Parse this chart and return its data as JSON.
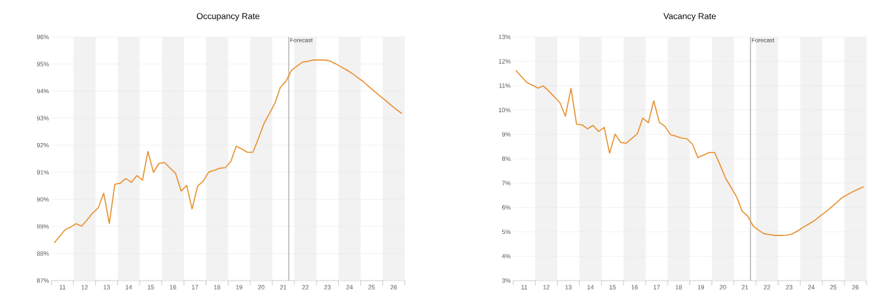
{
  "chart_data": [
    {
      "type": "line",
      "title": "Occupancy Rate",
      "color": "#e8902e",
      "grid": "y",
      "x": [
        "2011-02-15",
        "2011-05-15",
        "2011-08-15",
        "2011-11-15",
        "2012-02-15",
        "2012-05-15",
        "2012-08-15",
        "2012-11-15",
        "2013-02-15",
        "2013-05-15",
        "2013-08-15",
        "2013-11-15",
        "2014-02-15",
        "2014-05-15",
        "2014-08-15",
        "2014-11-15",
        "2015-02-15",
        "2015-05-15",
        "2015-08-15",
        "2015-11-15",
        "2016-02-15",
        "2016-05-15",
        "2016-08-15",
        "2016-11-15",
        "2017-02-15",
        "2017-05-15",
        "2017-08-15",
        "2017-11-15",
        "2018-02-15",
        "2018-05-15",
        "2018-08-15",
        "2018-11-15",
        "2019-02-15",
        "2019-05-15",
        "2019-08-15",
        "2019-11-15",
        "2020-02-15",
        "2020-05-15",
        "2020-08-15",
        "2020-11-15",
        "2021-02-15",
        "2021-05-15",
        "2021-08-15",
        "2021-11-15",
        "2022-02-15",
        "2022-05-15",
        "2022-08-15",
        "2022-11-15",
        "2023-02-15",
        "2023-05-15",
        "2023-08-15",
        "2023-11-15",
        "2024-02-15",
        "2024-05-15",
        "2024-08-15",
        "2024-11-15",
        "2025-02-15",
        "2025-05-15",
        "2025-08-15",
        "2025-11-15",
        "2026-02-15",
        "2026-05-15",
        "2026-08-15",
        "2026-11-15"
      ],
      "values": [
        88.39,
        88.63,
        88.88,
        88.98,
        89.1,
        89.01,
        89.25,
        89.5,
        89.69,
        90.23,
        89.11,
        90.56,
        90.6,
        90.77,
        90.63,
        90.88,
        90.71,
        91.77,
        91.0,
        91.33,
        91.36,
        91.16,
        90.96,
        90.31,
        90.51,
        89.65,
        90.49,
        90.67,
        91.01,
        91.07,
        91.15,
        91.17,
        91.4,
        91.96,
        91.86,
        91.74,
        91.74,
        92.24,
        92.79,
        93.17,
        93.56,
        94.14,
        94.36,
        94.77,
        94.93,
        95.07,
        95.1,
        95.15,
        95.15,
        95.15,
        95.11,
        95.01,
        94.89,
        94.78,
        94.65,
        94.5,
        94.35,
        94.17,
        94.0,
        93.82,
        93.66,
        93.49,
        93.32,
        93.17
      ],
      "xlim": [
        "2011",
        "2027"
      ],
      "ylim": [
        87,
        96
      ],
      "xticks": [
        {
          "value": "2011",
          "label": null
        },
        {
          "value": "2012",
          "label": null
        },
        {
          "value": "2013",
          "label": null
        },
        {
          "value": "2014",
          "label": null
        },
        {
          "value": "2015",
          "label": null
        },
        {
          "value": "2016",
          "label": null
        },
        {
          "value": "2017",
          "label": null
        },
        {
          "value": "2018",
          "label": null
        },
        {
          "value": "2019",
          "label": null
        },
        {
          "value": "2020",
          "label": null
        },
        {
          "value": "2021",
          "label": null
        },
        {
          "value": "2022",
          "label": null
        },
        {
          "value": "2023",
          "label": null
        },
        {
          "value": "2024",
          "label": null
        },
        {
          "value": "2025",
          "label": null
        },
        {
          "value": "2026",
          "label": null
        },
        {
          "value": "2027",
          "label": null
        },
        {
          "value": "2011-07-02",
          "label": "11"
        },
        {
          "value": "2012-07-02",
          "label": "12"
        },
        {
          "value": "2013-07-02",
          "label": "13"
        },
        {
          "value": "2014-07-02",
          "label": "14"
        },
        {
          "value": "2015-07-02",
          "label": "15"
        },
        {
          "value": "2016-07-02",
          "label": "16"
        },
        {
          "value": "2017-07-02",
          "label": "17"
        },
        {
          "value": "2018-07-02",
          "label": "18"
        },
        {
          "value": "2019-07-02",
          "label": "19"
        },
        {
          "value": "2020-07-02",
          "label": "20"
        },
        {
          "value": "2021-07-02",
          "label": "21"
        },
        {
          "value": "2022-07-02",
          "label": "22"
        },
        {
          "value": "2023-07-02",
          "label": "23"
        },
        {
          "value": "2024-07-02",
          "label": "24"
        },
        {
          "value": "2025-07-02",
          "label": "25"
        },
        {
          "value": "2026-07-02",
          "label": "26"
        }
      ],
      "yticks": [
        {
          "value": 87,
          "label": "87%"
        },
        {
          "value": 88,
          "label": "88%"
        },
        {
          "value": 89,
          "label": "89%"
        },
        {
          "value": 90,
          "label": "90%"
        },
        {
          "value": 91,
          "label": "91%"
        },
        {
          "value": 92,
          "label": "92%"
        },
        {
          "value": 93,
          "label": "93%"
        },
        {
          "value": 94,
          "label": "94%"
        },
        {
          "value": 95,
          "label": "95%"
        },
        {
          "value": 96,
          "label": "96%"
        }
      ],
      "bands": [
        {
          "axis": "x",
          "from": "2012",
          "to": "2013",
          "color": "#f2f2f2"
        },
        {
          "axis": "x",
          "from": "2014",
          "to": "2015",
          "color": "#f2f2f2"
        },
        {
          "axis": "x",
          "from": "2016",
          "to": "2017",
          "color": "#f2f2f2"
        },
        {
          "axis": "x",
          "from": "2018",
          "to": "2019",
          "color": "#f2f2f2"
        },
        {
          "axis": "x",
          "from": "2020",
          "to": "2021",
          "color": "#f2f2f2"
        },
        {
          "axis": "x",
          "from": "2022",
          "to": "2023",
          "color": "#f2f2f2"
        },
        {
          "axis": "x",
          "from": "2024",
          "to": "2025",
          "color": "#f2f2f2"
        },
        {
          "axis": "x",
          "from": "2026",
          "to": "2027",
          "color": "#f2f2f2"
        }
      ],
      "ref_lines": [
        {
          "axis": "x",
          "value": "2021-10",
          "label": "Forecast",
          "color": "#777777"
        }
      ]
    },
    {
      "type": "line",
      "title": "Vacancy Rate",
      "color": "#e8902e",
      "grid": "y",
      "x": [
        "2011-02-15",
        "2011-05-15",
        "2011-08-15",
        "2011-11-15",
        "2012-02-15",
        "2012-05-15",
        "2012-08-15",
        "2012-11-15",
        "2013-02-15",
        "2013-05-15",
        "2013-08-15",
        "2013-11-15",
        "2014-02-15",
        "2014-05-15",
        "2014-08-15",
        "2014-11-15",
        "2015-02-15",
        "2015-05-15",
        "2015-08-15",
        "2015-11-15",
        "2016-02-15",
        "2016-05-15",
        "2016-08-15",
        "2016-11-15",
        "2017-02-15",
        "2017-05-15",
        "2017-08-15",
        "2017-11-15",
        "2018-02-15",
        "2018-05-15",
        "2018-08-15",
        "2018-11-15",
        "2019-02-15",
        "2019-05-15",
        "2019-08-15",
        "2019-11-15",
        "2020-02-15",
        "2020-05-15",
        "2020-08-15",
        "2020-11-15",
        "2021-02-15",
        "2021-05-15",
        "2021-08-15",
        "2021-11-15",
        "2022-02-15",
        "2022-05-15",
        "2022-08-15",
        "2022-11-15",
        "2023-02-15",
        "2023-05-15",
        "2023-08-15",
        "2023-11-15",
        "2024-02-15",
        "2024-05-15",
        "2024-08-15",
        "2024-11-15",
        "2025-02-15",
        "2025-05-15",
        "2025-08-15",
        "2025-11-15",
        "2026-02-15",
        "2026-05-15",
        "2026-08-15",
        "2026-11-15"
      ],
      "values": [
        11.63,
        11.38,
        11.13,
        11.02,
        10.9,
        10.99,
        10.77,
        10.54,
        10.29,
        9.75,
        10.89,
        9.42,
        9.39,
        9.23,
        9.37,
        9.12,
        9.29,
        8.23,
        9.01,
        8.67,
        8.64,
        8.83,
        9.02,
        9.67,
        9.48,
        10.38,
        9.5,
        9.33,
        8.99,
        8.93,
        8.85,
        8.82,
        8.59,
        8.05,
        8.15,
        8.26,
        8.26,
        7.75,
        7.2,
        6.82,
        6.43,
        5.85,
        5.65,
        5.24,
        5.06,
        4.92,
        4.89,
        4.85,
        4.85,
        4.86,
        4.91,
        5.03,
        5.18,
        5.31,
        5.45,
        5.62,
        5.8,
        5.98,
        6.18,
        6.39,
        6.52,
        6.64,
        6.75,
        6.85
      ],
      "xlim": [
        "2011",
        "2027"
      ],
      "ylim": [
        3,
        13
      ],
      "xticks": [
        {
          "value": "2011",
          "label": null
        },
        {
          "value": "2012",
          "label": null
        },
        {
          "value": "2013",
          "label": null
        },
        {
          "value": "2014",
          "label": null
        },
        {
          "value": "2015",
          "label": null
        },
        {
          "value": "2016",
          "label": null
        },
        {
          "value": "2017",
          "label": null
        },
        {
          "value": "2018",
          "label": null
        },
        {
          "value": "2019",
          "label": null
        },
        {
          "value": "2020",
          "label": null
        },
        {
          "value": "2021",
          "label": null
        },
        {
          "value": "2022",
          "label": null
        },
        {
          "value": "2023",
          "label": null
        },
        {
          "value": "2024",
          "label": null
        },
        {
          "value": "2025",
          "label": null
        },
        {
          "value": "2026",
          "label": null
        },
        {
          "value": "2027",
          "label": null
        },
        {
          "value": "2011-07-02",
          "label": "11"
        },
        {
          "value": "2012-07-02",
          "label": "12"
        },
        {
          "value": "2013-07-02",
          "label": "13"
        },
        {
          "value": "2014-07-02",
          "label": "14"
        },
        {
          "value": "2015-07-02",
          "label": "15"
        },
        {
          "value": "2016-07-02",
          "label": "16"
        },
        {
          "value": "2017-07-02",
          "label": "17"
        },
        {
          "value": "2018-07-02",
          "label": "18"
        },
        {
          "value": "2019-07-02",
          "label": "19"
        },
        {
          "value": "2020-07-02",
          "label": "20"
        },
        {
          "value": "2021-07-02",
          "label": "21"
        },
        {
          "value": "2022-07-02",
          "label": "22"
        },
        {
          "value": "2023-07-02",
          "label": "23"
        },
        {
          "value": "2024-07-02",
          "label": "24"
        },
        {
          "value": "2025-07-02",
          "label": "25"
        },
        {
          "value": "2026-07-02",
          "label": "26"
        }
      ],
      "yticks": [
        {
          "value": 3,
          "label": "3%"
        },
        {
          "value": 4,
          "label": "4%"
        },
        {
          "value": 5,
          "label": "5%"
        },
        {
          "value": 6,
          "label": "6%"
        },
        {
          "value": 7,
          "label": "7%"
        },
        {
          "value": 8,
          "label": "8%"
        },
        {
          "value": 9,
          "label": "9%"
        },
        {
          "value": 10,
          "label": "10%"
        },
        {
          "value": 11,
          "label": "11%"
        },
        {
          "value": 12,
          "label": "12%"
        },
        {
          "value": 13,
          "label": "13%"
        }
      ],
      "bands": [
        {
          "axis": "x",
          "from": "2012",
          "to": "2013",
          "color": "#f2f2f2"
        },
        {
          "axis": "x",
          "from": "2014",
          "to": "2015",
          "color": "#f2f2f2"
        },
        {
          "axis": "x",
          "from": "2016",
          "to": "2017",
          "color": "#f2f2f2"
        },
        {
          "axis": "x",
          "from": "2018",
          "to": "2019",
          "color": "#f2f2f2"
        },
        {
          "axis": "x",
          "from": "2020",
          "to": "2021",
          "color": "#f2f2f2"
        },
        {
          "axis": "x",
          "from": "2022",
          "to": "2023",
          "color": "#f2f2f2"
        },
        {
          "axis": "x",
          "from": "2024",
          "to": "2025",
          "color": "#f2f2f2"
        },
        {
          "axis": "x",
          "from": "2026",
          "to": "2027",
          "color": "#f2f2f2"
        }
      ],
      "ref_lines": [
        {
          "axis": "x",
          "value": "2021-10",
          "label": "Forecast",
          "color": "#777777"
        }
      ]
    }
  ]
}
